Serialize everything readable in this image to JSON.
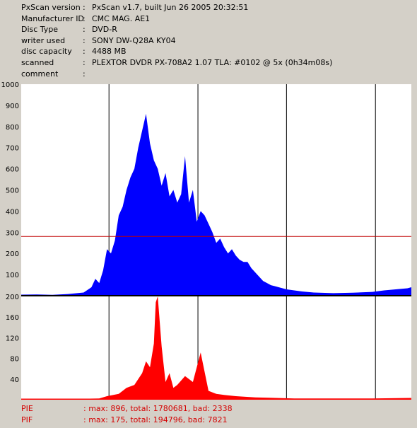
{
  "info": [
    {
      "key": "PxScan version",
      "value": "PxScan v1.7, built Jun 26 2005 20:32:51"
    },
    {
      "key": "Manufacturer ID",
      "value": "CMC MAG. AE1"
    },
    {
      "key": "Disc Type",
      "value": "DVD-R"
    },
    {
      "key": "writer used",
      "value": "SONY DW-Q28A KY04"
    },
    {
      "key": "disc capacity",
      "value": "4488 MB"
    },
    {
      "key": "scanned",
      "value": "PLEXTOR DVDR PX-708A2 1.07 TLA: #0102 @ 5x (0h34m08s)"
    },
    {
      "key": "comment",
      "value": ""
    }
  ],
  "separator": ":",
  "footer": {
    "pie_label": "PIE",
    "pie_value": ": max: 896, total: 1780681, bad: 2338",
    "pif_label": "PIF",
    "pif_value": ": max: 175, total: 194796, bad: 7821"
  },
  "colors": {
    "pie": "#0000ff",
    "pif": "#ff0000",
    "threshold": "#c00000",
    "background": "#ffffff",
    "grid": "#000000"
  },
  "chart_data": [
    {
      "type": "area",
      "series": [
        {
          "name": "PIE",
          "color": "#0000ff"
        }
      ],
      "ylim": [
        0,
        1000
      ],
      "yticks": [
        "1000",
        "900",
        "800",
        "700",
        "600",
        "500",
        "400",
        "300",
        "200",
        "100"
      ],
      "threshold": 280,
      "x": [
        0,
        0.04,
        0.08,
        0.12,
        0.16,
        0.18,
        0.19,
        0.2,
        0.21,
        0.22,
        0.23,
        0.24,
        0.25,
        0.26,
        0.27,
        0.28,
        0.29,
        0.3,
        0.31,
        0.32,
        0.33,
        0.34,
        0.35,
        0.36,
        0.37,
        0.38,
        0.39,
        0.4,
        0.41,
        0.42,
        0.43,
        0.44,
        0.45,
        0.46,
        0.47,
        0.48,
        0.49,
        0.5,
        0.51,
        0.52,
        0.53,
        0.54,
        0.55,
        0.56,
        0.57,
        0.58,
        0.59,
        0.6,
        0.61,
        0.62,
        0.63,
        0.64,
        0.65,
        0.66,
        0.68,
        0.7,
        0.72,
        0.75,
        0.8,
        0.85,
        0.9,
        0.93,
        0.96,
        0.99,
        1.0
      ],
      "values": [
        5,
        6,
        4,
        8,
        15,
        40,
        80,
        60,
        120,
        220,
        200,
        260,
        380,
        420,
        500,
        560,
        600,
        700,
        780,
        860,
        720,
        640,
        600,
        520,
        580,
        470,
        500,
        440,
        480,
        660,
        440,
        500,
        350,
        400,
        380,
        340,
        300,
        250,
        270,
        230,
        200,
        220,
        190,
        170,
        160,
        160,
        130,
        110,
        90,
        70,
        60,
        50,
        45,
        40,
        30,
        25,
        20,
        15,
        12,
        14,
        18,
        25,
        30,
        35,
        40
      ]
    },
    {
      "type": "area",
      "series": [
        {
          "name": "PIF",
          "color": "#ff0000"
        }
      ],
      "ylim": [
        0,
        175
      ],
      "yticks": [
        "200",
        "160",
        "120",
        "80",
        "40"
      ],
      "x": [
        0,
        0.1,
        0.2,
        0.22,
        0.25,
        0.27,
        0.29,
        0.31,
        0.32,
        0.33,
        0.34,
        0.345,
        0.35,
        0.36,
        0.37,
        0.38,
        0.39,
        0.4,
        0.42,
        0.44,
        0.46,
        0.48,
        0.5,
        0.52,
        0.55,
        0.6,
        0.7,
        0.8,
        0.9,
        1.0
      ],
      "values": [
        1,
        1,
        2,
        6,
        10,
        20,
        25,
        45,
        65,
        55,
        95,
        165,
        175,
        90,
        30,
        45,
        20,
        25,
        40,
        30,
        80,
        15,
        10,
        8,
        6,
        4,
        2,
        2,
        2,
        3
      ]
    }
  ]
}
